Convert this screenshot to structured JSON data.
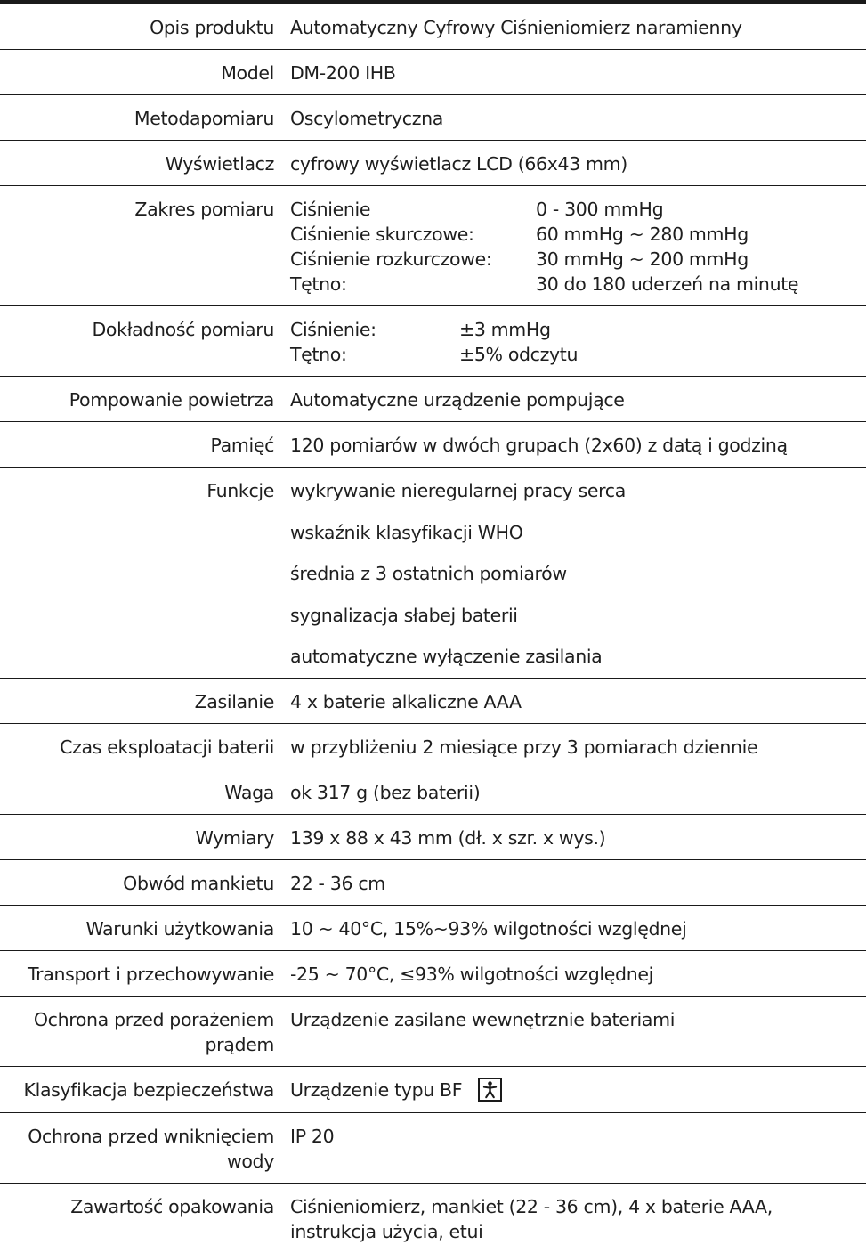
{
  "rows": [
    {
      "label": "Opis produktu",
      "value": "Automatyczny Cyfrowy Ciśnieniomierz naramienny"
    },
    {
      "label": "Model",
      "value": "DM-200 IHB"
    },
    {
      "label": "Metodapomiaru",
      "value": "Oscylometryczna"
    },
    {
      "label": "Wyświetlacz",
      "value": "cyfrowy wyświetlacz LCD (66x43 mm)"
    },
    {
      "label": "Zakres pomiaru",
      "items": [
        {
          "k": "Ciśnienie",
          "v": "0 - 300 mmHg"
        },
        {
          "k": "Ciśnienie skurczowe:",
          "v": "60 mmHg ~ 280 mmHg"
        },
        {
          "k": "Ciśnienie rozkurczowe:",
          "v": "30 mmHg ~ 200 mmHg"
        },
        {
          "k": "Tętno:",
          "v": "30 do 180 uderzeń na minutę"
        }
      ]
    },
    {
      "label": "Dokładność pomiaru",
      "items": [
        {
          "k": "Ciśnienie:",
          "v": "±3 mmHg"
        },
        {
          "k": "Tętno:",
          "v": "±5% odczytu"
        }
      ]
    },
    {
      "label": "Pompowanie powietrza",
      "value": "Automatyczne urządzenie pompujące"
    },
    {
      "label": "Pamięć",
      "value": "120 pomiarów w dwóch grupach (2x60) z datą i godziną"
    },
    {
      "label": "Funkcje",
      "list": [
        "wykrywanie nieregularnej pracy serca",
        "wskaźnik klasyfikacji WHO",
        "średnia z 3 ostatnich pomiarów",
        "sygnalizacja słabej baterii",
        "automatyczne wyłączenie zasilania"
      ]
    },
    {
      "label": "Zasilanie",
      "value": "4 x baterie alkaliczne AAA"
    },
    {
      "label": "Czas eksploatacji baterii",
      "value": "w przybliżeniu 2 miesiące przy 3 pomiarach dziennie"
    },
    {
      "label": "Waga",
      "value": "ok 317 g (bez baterii)"
    },
    {
      "label": "Wymiary",
      "value": "139 x 88 x 43 mm (dł. x szr. x wys.)"
    },
    {
      "label": "Obwód mankietu",
      "value": "22 - 36 cm"
    },
    {
      "label": "Warunki użytkowania",
      "value": "10 ~ 40°C, 15%~93% wilgotności względnej"
    },
    {
      "label": "Transport i przechowywanie",
      "value": "-25 ~ 70°C, ≤93% wilgotności względnej"
    },
    {
      "label": "Ochrona przed porażeniem prądem",
      "value": "Urządzenie zasilane wewnętrznie bateriami"
    },
    {
      "label": "Klasyfikacja bezpieczeństwa",
      "value": "Urządzenie typu BF",
      "icon": "type-bf-applied-part-icon"
    },
    {
      "label": "Ochrona przed wniknięciem wody",
      "value": "IP 20"
    },
    {
      "label": "Zawartość opakowania",
      "value": "Ciśnieniomierz, mankiet (22 - 36 cm), 4 x baterie AAA, instrukcja użycia, etui"
    }
  ]
}
